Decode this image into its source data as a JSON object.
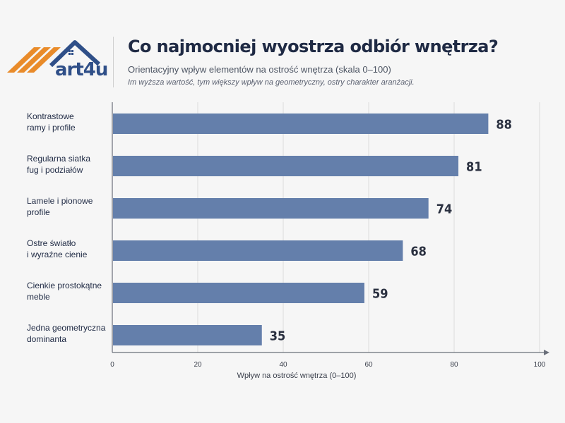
{
  "header": {
    "logo_text": "art4u",
    "title": "Co najmocniej wyostrza odbiór wnętrza?",
    "subtitle": "Orientacyjny wpływ elementów na ostrość wnętrza (skala 0–100)",
    "note": "Im wyższa wartość, tym większy wpływ na geometryczny, ostry charakter aranżacji."
  },
  "colors": {
    "bar": "#647fab",
    "logo_orange": "#e98b2a",
    "logo_blue": "#2f4f88"
  },
  "chart_data": {
    "type": "bar",
    "orientation": "horizontal",
    "categories": [
      [
        "Kontrastowe",
        "ramy i profile"
      ],
      [
        "Regularna siatka",
        "fug i podziałów"
      ],
      [
        "Lamele i pionowe",
        "profile"
      ],
      [
        "Ostre światło",
        "i wyraźne cienie"
      ],
      [
        "Cienkie prostokątne",
        "meble"
      ],
      [
        "Jedna geometryczna",
        "dominanta"
      ]
    ],
    "values": [
      88,
      81,
      74,
      68,
      59,
      35
    ],
    "xlabel": "Wpływ na ostrość wnętrza (0–100)",
    "xlim": [
      0,
      100
    ],
    "xticks": [
      0,
      20,
      40,
      60,
      80,
      100
    ],
    "grid": true
  }
}
